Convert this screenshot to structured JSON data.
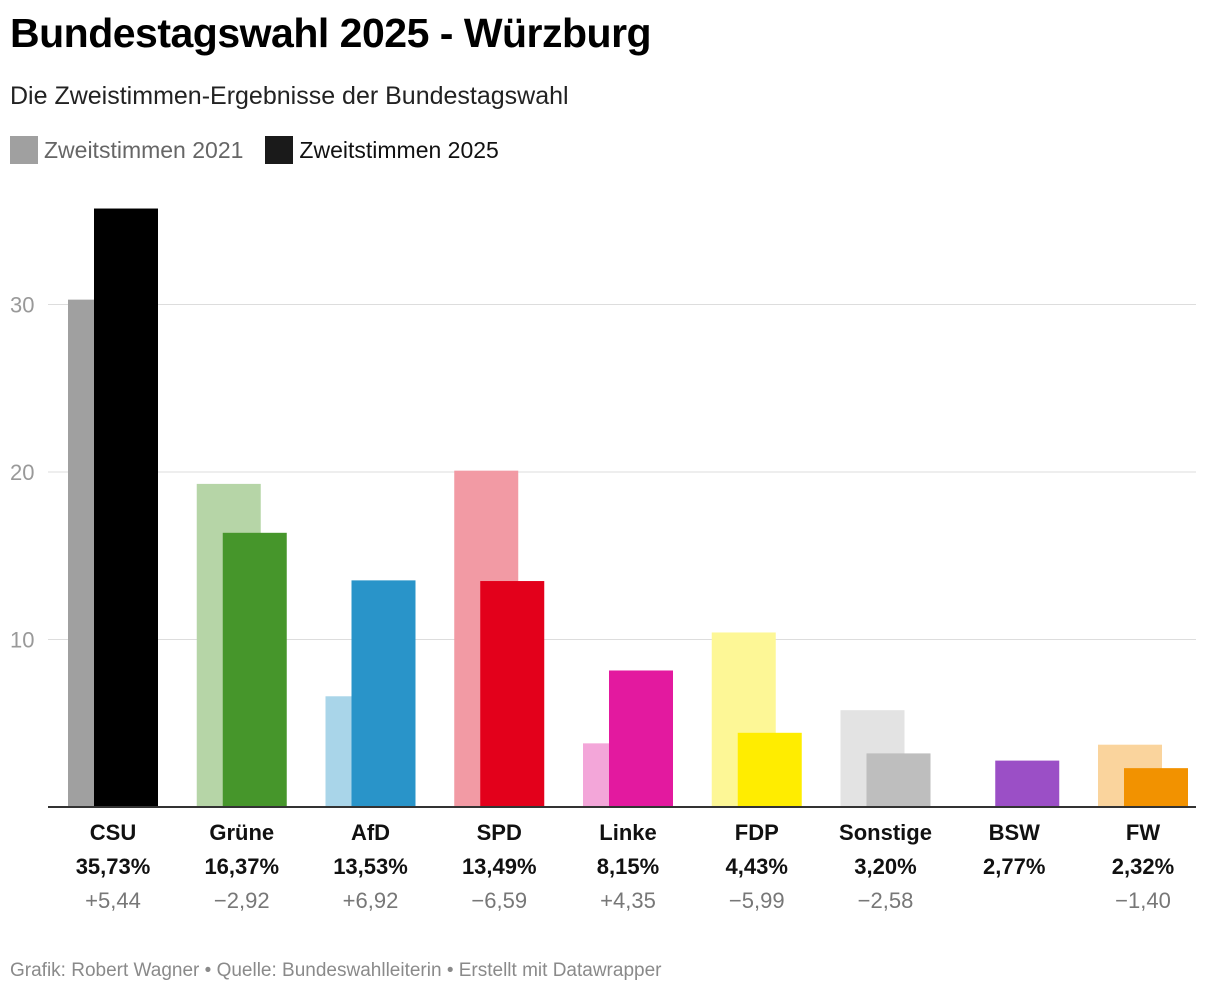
{
  "title": "Bundestagswahl 2025 - Würzburg",
  "subtitle": "Die Zweistimmen-Ergebnisse der Bundestagswahl",
  "legend": [
    {
      "label": "Zweitstimmen 2021",
      "color": "#a0a0a0"
    },
    {
      "label": "Zweitstimmen 2025",
      "color": "#1a1a1a"
    }
  ],
  "footer": "Grafik: Robert Wagner • Quelle: Bundeswahlleiterin • Erstellt mit Datawrapper",
  "chart_data": {
    "type": "bar",
    "categories": [
      "CSU",
      "Grüne",
      "AfD",
      "SPD",
      "Linke",
      "FDP",
      "Sonstige",
      "BSW",
      "FW"
    ],
    "series": [
      {
        "name": "Zweitstimmen 2021",
        "values": [
          30.29,
          19.29,
          6.61,
          20.08,
          3.8,
          10.42,
          5.78,
          null,
          3.72
        ]
      },
      {
        "name": "Zweitstimmen 2025",
        "values": [
          35.73,
          16.37,
          13.53,
          13.49,
          8.15,
          4.43,
          3.2,
          2.77,
          2.32
        ]
      }
    ],
    "value_labels": [
      "35,73%",
      "16,37%",
      "13,53%",
      "13,49%",
      "8,15%",
      "4,43%",
      "3,20%",
      "2,77%",
      "2,32%"
    ],
    "diff_labels": [
      "+5,44",
      "−2,92",
      "+6,92",
      "−6,59",
      "+4,35",
      "−5,99",
      "−2,58",
      "",
      "−1,40"
    ],
    "colors_2021": [
      "#a0a0a0",
      "#b6d5a7",
      "#a9d5e9",
      "#f29aa4",
      "#f3a6d9",
      "#fdf796",
      "#e3e3e3",
      "#c9a3e3",
      "#fad49d"
    ],
    "colors_2025": [
      "#000000",
      "#46962b",
      "#2994c9",
      "#e3001b",
      "#e3199f",
      "#ffed00",
      "#bebebe",
      "#9b4fc6",
      "#f29200"
    ],
    "yticks": [
      10,
      20,
      30
    ],
    "tick_labels": [
      "10",
      "20",
      "30"
    ],
    "ylim": [
      0,
      36
    ],
    "grid": true,
    "legend_position": "top-left"
  }
}
